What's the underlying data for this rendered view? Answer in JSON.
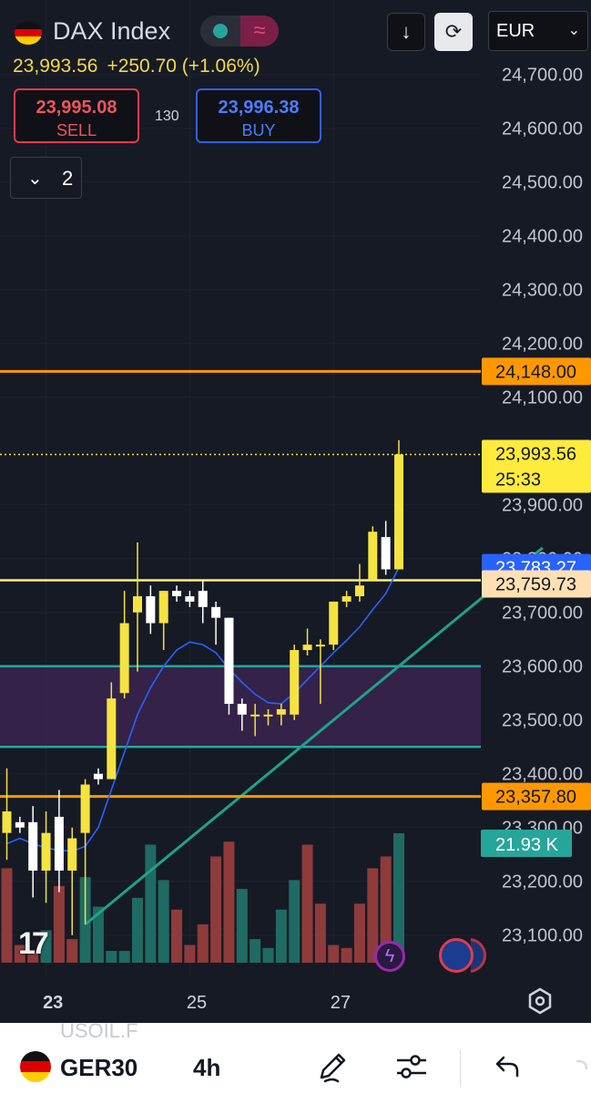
{
  "header": {
    "title": "DAX Index",
    "last_price": "23,993.56",
    "change": "+250.70 (+1.06%)",
    "currency": "EUR",
    "sell_price": "23,995.08",
    "sell_label": "SELL",
    "buy_price": "23,996.38",
    "buy_label": "BUY",
    "spread": "130",
    "collapse_count": "2"
  },
  "bottom_bar": {
    "symbol": "GER30",
    "timeframe": "4h",
    "ghost_symbol": "USOIL.F"
  },
  "colors": {
    "background": "#161a25",
    "bull": "#f5e342",
    "bear": "#ffffff",
    "vol_up": "#1f6b63",
    "vol_down": "#8f3b3b",
    "ma": "#2962ff",
    "orange_line": "#ff9800",
    "teal_line": "#26a69a",
    "zone": "#3a2450",
    "yellow_line": "#fff176"
  },
  "chart_data": {
    "type": "candlestick",
    "ylim": [
      23025,
      24830
    ],
    "y_ticks": [
      23100,
      23200,
      23300,
      23400,
      23500,
      23600,
      23700,
      23800,
      23900,
      24000,
      24100,
      24200,
      24300,
      24400,
      24500,
      24600,
      24700
    ],
    "y_tick_labels": [
      "23,100.00",
      "23,200.00",
      "23,300.00",
      "23,400.00",
      "23,500.00",
      "23,600.00",
      "23,700.00",
      "23,800.00",
      "23,900.00",
      "",
      "24,100.00",
      "24,200.00",
      "24,300.00",
      "24,400.00",
      "24,500.00",
      "24,600.00",
      "24,700.00"
    ],
    "x_labels": [
      {
        "label": "23",
        "index": 2
      },
      {
        "label": "25",
        "index": 13
      },
      {
        "label": "27",
        "index": 24
      }
    ],
    "candles": [
      {
        "o": 23290,
        "h": 23410,
        "l": 23240,
        "c": 23330
      },
      {
        "o": 23310,
        "h": 23320,
        "l": 23290,
        "c": 23300
      },
      {
        "o": 23310,
        "h": 23340,
        "l": 23170,
        "c": 23220
      },
      {
        "o": 23220,
        "h": 23330,
        "l": 23160,
        "c": 23290
      },
      {
        "o": 23320,
        "h": 23370,
        "l": 23180,
        "c": 23220
      },
      {
        "o": 23220,
        "h": 23300,
        "l": 23100,
        "c": 23280
      },
      {
        "o": 23290,
        "h": 23390,
        "l": 23120,
        "c": 23380
      },
      {
        "o": 23400,
        "h": 23410,
        "l": 23380,
        "c": 23390
      },
      {
        "o": 23390,
        "h": 23570,
        "l": 23390,
        "c": 23540
      },
      {
        "o": 23550,
        "h": 23740,
        "l": 23540,
        "c": 23680
      },
      {
        "o": 23700,
        "h": 23830,
        "l": 23590,
        "c": 23730
      },
      {
        "o": 23730,
        "h": 23750,
        "l": 23660,
        "c": 23680
      },
      {
        "o": 23680,
        "h": 23740,
        "l": 23630,
        "c": 23740
      },
      {
        "o": 23740,
        "h": 23750,
        "l": 23720,
        "c": 23730
      },
      {
        "o": 23730,
        "h": 23740,
        "l": 23710,
        "c": 23720
      },
      {
        "o": 23740,
        "h": 23760,
        "l": 23680,
        "c": 23710
      },
      {
        "o": 23710,
        "h": 23720,
        "l": 23640,
        "c": 23690
      },
      {
        "o": 23690,
        "h": 23690,
        "l": 23510,
        "c": 23530
      },
      {
        "o": 23530,
        "h": 23540,
        "l": 23480,
        "c": 23510
      },
      {
        "o": 23510,
        "h": 23530,
        "l": 23470,
        "c": 23510
      },
      {
        "o": 23510,
        "h": 23520,
        "l": 23490,
        "c": 23510
      },
      {
        "o": 23510,
        "h": 23530,
        "l": 23490,
        "c": 23520
      },
      {
        "o": 23510,
        "h": 23640,
        "l": 23500,
        "c": 23630
      },
      {
        "o": 23630,
        "h": 23670,
        "l": 23620,
        "c": 23640
      },
      {
        "o": 23640,
        "h": 23650,
        "l": 23530,
        "c": 23640
      },
      {
        "o": 23640,
        "h": 23720,
        "l": 23630,
        "c": 23720
      },
      {
        "o": 23720,
        "h": 23740,
        "l": 23710,
        "c": 23730
      },
      {
        "o": 23730,
        "h": 23790,
        "l": 23720,
        "c": 23750
      },
      {
        "o": 23760,
        "h": 23860,
        "l": 23760,
        "c": 23850
      },
      {
        "o": 23840,
        "h": 23870,
        "l": 23770,
        "c": 23780
      },
      {
        "o": 23780,
        "h": 24020,
        "l": 23780,
        "c": 23993.56
      }
    ],
    "volume_scale_max": 21930,
    "volumes": [
      {
        "v": 16000,
        "up": false
      },
      {
        "v": 3000,
        "up": false
      },
      {
        "v": 2000,
        "up": false
      },
      {
        "v": 5500,
        "up": true
      },
      {
        "v": 13000,
        "up": false
      },
      {
        "v": 4000,
        "up": false
      },
      {
        "v": 14500,
        "up": true
      },
      {
        "v": 9500,
        "up": true
      },
      {
        "v": 2000,
        "up": true
      },
      {
        "v": 2000,
        "up": true
      },
      {
        "v": 11000,
        "up": true
      },
      {
        "v": 20000,
        "up": true
      },
      {
        "v": 14000,
        "up": true
      },
      {
        "v": 9000,
        "up": false
      },
      {
        "v": 3000,
        "up": false
      },
      {
        "v": 6500,
        "up": false
      },
      {
        "v": 18000,
        "up": false
      },
      {
        "v": 20500,
        "up": false
      },
      {
        "v": 12500,
        "up": true
      },
      {
        "v": 4000,
        "up": true
      },
      {
        "v": 2500,
        "up": true
      },
      {
        "v": 9000,
        "up": true
      },
      {
        "v": 14000,
        "up": true
      },
      {
        "v": 20000,
        "up": false
      },
      {
        "v": 10000,
        "up": false
      },
      {
        "v": 3000,
        "up": false
      },
      {
        "v": 2500,
        "up": false
      },
      {
        "v": 10000,
        "up": false
      },
      {
        "v": 16000,
        "up": false
      },
      {
        "v": 18000,
        "up": false
      },
      {
        "v": 21930,
        "up": true
      }
    ],
    "ma": [
      23270,
      23280,
      23270,
      23262,
      23258,
      23256,
      23265,
      23300,
      23370,
      23440,
      23510,
      23560,
      23600,
      23630,
      23645,
      23640,
      23625,
      23595,
      23570,
      23548,
      23532,
      23530,
      23550,
      23575,
      23600,
      23625,
      23648,
      23673,
      23705,
      23735,
      23783.27
    ],
    "levels": [
      {
        "name": "resistance",
        "value": 24148.0,
        "label": "24,148.00",
        "style": "orange"
      },
      {
        "name": "current",
        "value": 23993.56,
        "label": "23,993.56",
        "sub": "25:33",
        "style": "current"
      },
      {
        "name": "ma",
        "value": 23783.27,
        "label": "23,783.27",
        "style": "blue"
      },
      {
        "name": "yellow",
        "value": 23759.73,
        "label": "23,759.73",
        "style": "pale"
      },
      {
        "name": "support",
        "value": 23357.8,
        "label": "23,357.80",
        "style": "orange"
      }
    ],
    "zone": {
      "top": 23600,
      "bottom": 23450
    },
    "trendline": {
      "start": {
        "index": 6,
        "price": 23120
      },
      "end": {
        "index": 41,
        "price": 23820
      }
    },
    "volume_label": "21.93 K"
  }
}
